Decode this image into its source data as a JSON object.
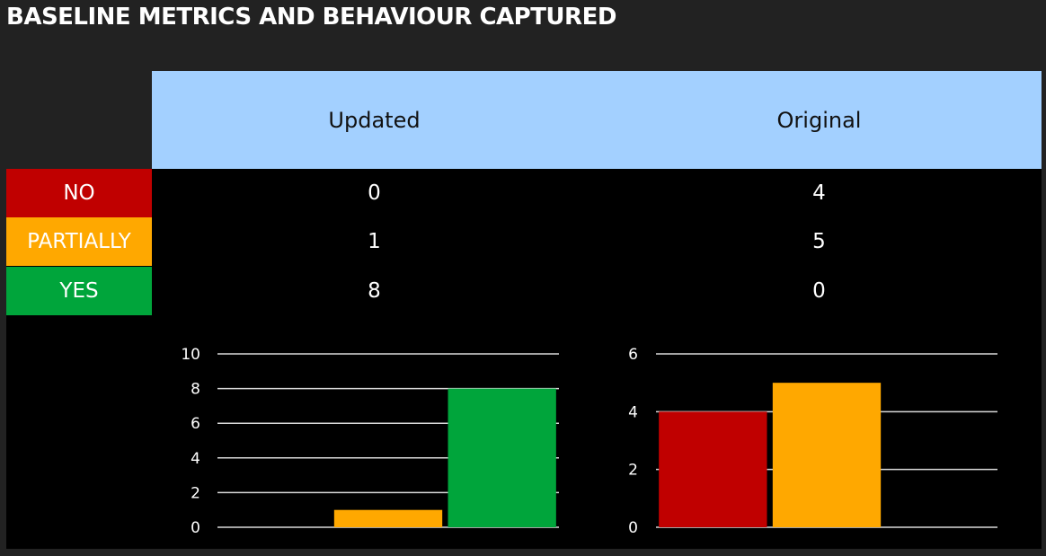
{
  "title": "BASELINE METRICS AND BEHAVIOUR CAPTURED",
  "table": {
    "columns": [
      "Updated",
      "Original"
    ],
    "rows": [
      {
        "label": "NO",
        "color": "#c00000",
        "values": [
          "0",
          "4"
        ]
      },
      {
        "label": "PARTIALLY",
        "color": "#ffa800",
        "values": [
          "1",
          "5"
        ]
      },
      {
        "label": "YES",
        "color": "#00a53b",
        "values": [
          "8",
          "0"
        ]
      }
    ]
  },
  "chart_data": [
    {
      "type": "bar",
      "categories": [
        "NO",
        "PARTIALLY",
        "YES"
      ],
      "values": [
        0,
        1,
        8
      ],
      "colors": [
        "#c00000",
        "#ffa800",
        "#00a53b"
      ],
      "ylim": [
        0,
        10
      ],
      "yticks": [
        0,
        2,
        4,
        6,
        8,
        10
      ],
      "grid": true
    },
    {
      "type": "bar",
      "categories": [
        "NO",
        "PARTIALLY",
        "YES"
      ],
      "values": [
        4,
        5,
        0
      ],
      "colors": [
        "#c00000",
        "#ffa800",
        "#00a53b"
      ],
      "ylim": [
        0,
        6
      ],
      "yticks": [
        0,
        2,
        4,
        6
      ],
      "grid": true
    }
  ]
}
